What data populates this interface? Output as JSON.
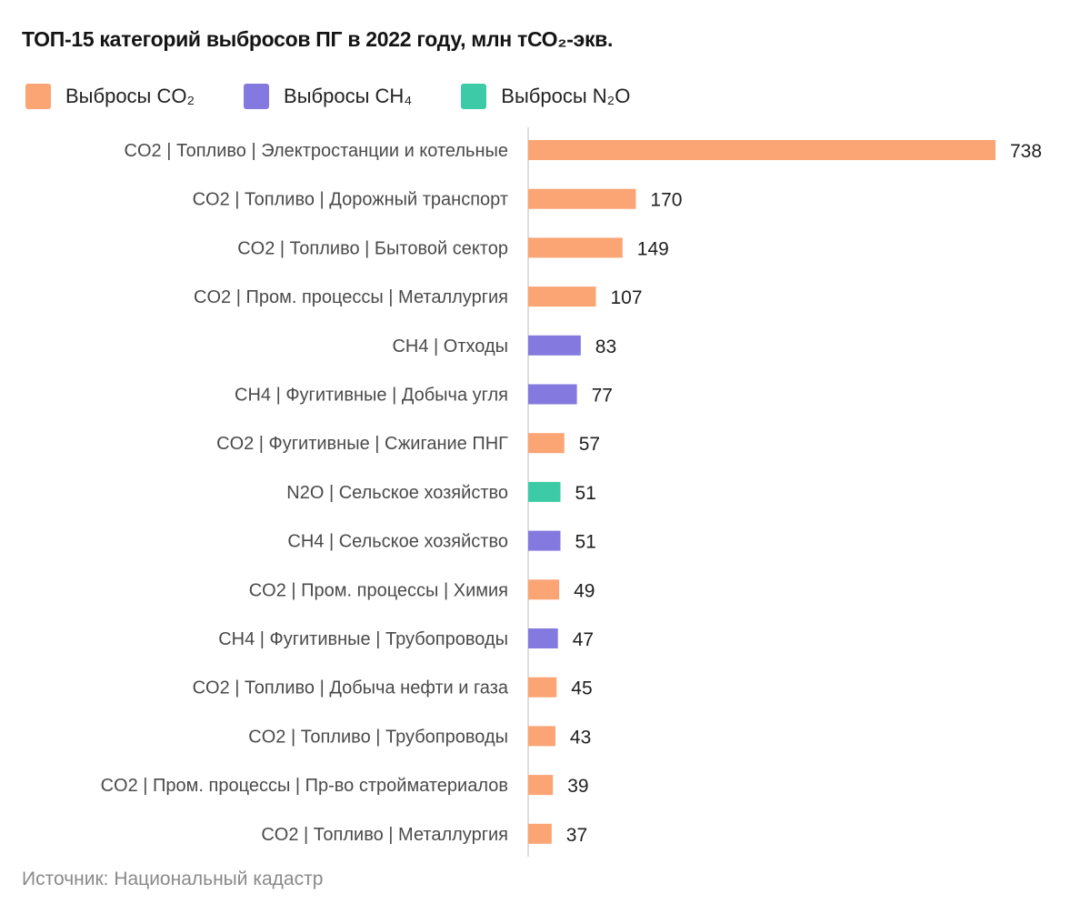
{
  "title": "ТОП-15 категорий выбросов ПГ в 2022 году, млн тСО₂-экв.",
  "legend": {
    "items": [
      {
        "key": "CO2",
        "label": "Выбросы CO₂",
        "color": "#FBA474"
      },
      {
        "key": "CH4",
        "label": "Выбросы CH₄",
        "color": "#8479DE"
      },
      {
        "key": "N2O",
        "label": "Выбросы N₂O",
        "color": "#3CCBA6"
      }
    ]
  },
  "source": "Источник: Национальный кадастр",
  "chart_data": {
    "type": "bar",
    "orientation": "horizontal",
    "title": "ТОП-15 категорий выбросов ПГ в 2022 году, млн тСО₂-экв.",
    "xlabel": "",
    "ylabel": "",
    "xlim": [
      0,
      738
    ],
    "grid": false,
    "legend_position": "top",
    "categories": [
      "CO2 | Топливо | Электростанции и котельные",
      "CO2 | Топливо | Дорожный транспорт",
      "CO2 | Топливо | Бытовой сектор",
      "CO2 | Пром. процессы | Металлургия",
      "CH4 | Отходы",
      "CH4 | Фугитивные | Добыча угля",
      "CO2 | Фугитивные | Сжигание ПНГ",
      "N2O | Сельское хозяйство",
      "CH4 | Сельское хозяйство",
      "CO2 | Пром. процессы | Химия",
      "CH4 | Фугитивные | Трубопроводы",
      "CO2 | Топливо | Добыча нефти и газа",
      "CO2 | Топливо | Трубопроводы",
      "CO2 | Пром. процессы | Пр-во стройматериалов",
      "CO2 | Топливо | Металлургия"
    ],
    "values": [
      738,
      170,
      149,
      107,
      83,
      77,
      57,
      51,
      51,
      49,
      47,
      45,
      43,
      39,
      37
    ],
    "gas": [
      "CO2",
      "CO2",
      "CO2",
      "CO2",
      "CH4",
      "CH4",
      "CO2",
      "N2O",
      "CH4",
      "CO2",
      "CH4",
      "CO2",
      "CO2",
      "CO2",
      "CO2"
    ],
    "colors": {
      "CO2": "#FBA474",
      "CH4": "#8479DE",
      "N2O": "#3CCBA6"
    },
    "axis_color": "#DDDDDD"
  }
}
